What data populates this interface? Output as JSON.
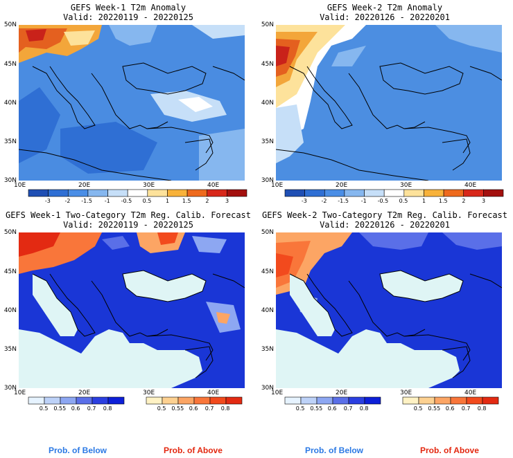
{
  "panels": [
    {
      "title": "GEFS Week-1 T2m Anomaly",
      "valid": "Valid: 20220119 - 20220125"
    },
    {
      "title": "GEFS Week-2 T2m Anomaly",
      "valid": "Valid: 20220126 - 20220201"
    },
    {
      "title": "GEFS Week-1 Two-Category T2m Reg. Calib. Forecast",
      "valid": "Valid: 20220119 - 20220125"
    },
    {
      "title": "GEFS Week-2 Two-Category T2m Reg. Calib. Forecast",
      "valid": "Valid: 20220126 - 20220201"
    }
  ],
  "lat_labels": [
    "50N",
    "45N",
    "40N",
    "35N",
    "30N"
  ],
  "lon_labels": [
    "10E",
    "20E",
    "30E",
    "40E"
  ],
  "anomaly_colorbar": {
    "labels": [
      "-3",
      "-2",
      "-1.5",
      "-1",
      "-0.5",
      "0.5",
      "1",
      "1.5",
      "2",
      "3"
    ],
    "colors": [
      "#1f4fb4",
      "#2f6fd4",
      "#4a8ee6",
      "#86b7ef",
      "#c6dff8",
      "#ffffff",
      "#fde29b",
      "#f8b23a",
      "#ee6a1d",
      "#d8281a",
      "#a3100e"
    ]
  },
  "below_colorbar": {
    "labels": [
      "0.5",
      "0.55",
      "0.6",
      "0.7",
      "0.8"
    ],
    "colors": [
      "#e6f3ff",
      "#bdd2f8",
      "#8da7f2",
      "#5a6fe8",
      "#2b3fe0",
      "#0d1fd8"
    ]
  },
  "above_colorbar": {
    "labels": [
      "0.5",
      "0.55",
      "0.6",
      "0.7",
      "0.8"
    ],
    "colors": [
      "#fff2c4",
      "#fdd191",
      "#fca564",
      "#f9763a",
      "#f24a1d",
      "#e32a12"
    ]
  },
  "legend": {
    "below": "Prob. of Below",
    "above": "Prob. of Above",
    "below_color": "#2a78e4",
    "above_color": "#e3270f"
  },
  "map_colors": {
    "sea_light": "#dff5f5",
    "land_blue": "#1a36d6",
    "anom_blue": "#3b7fdc",
    "anom_mid": "#5d9ce6"
  }
}
